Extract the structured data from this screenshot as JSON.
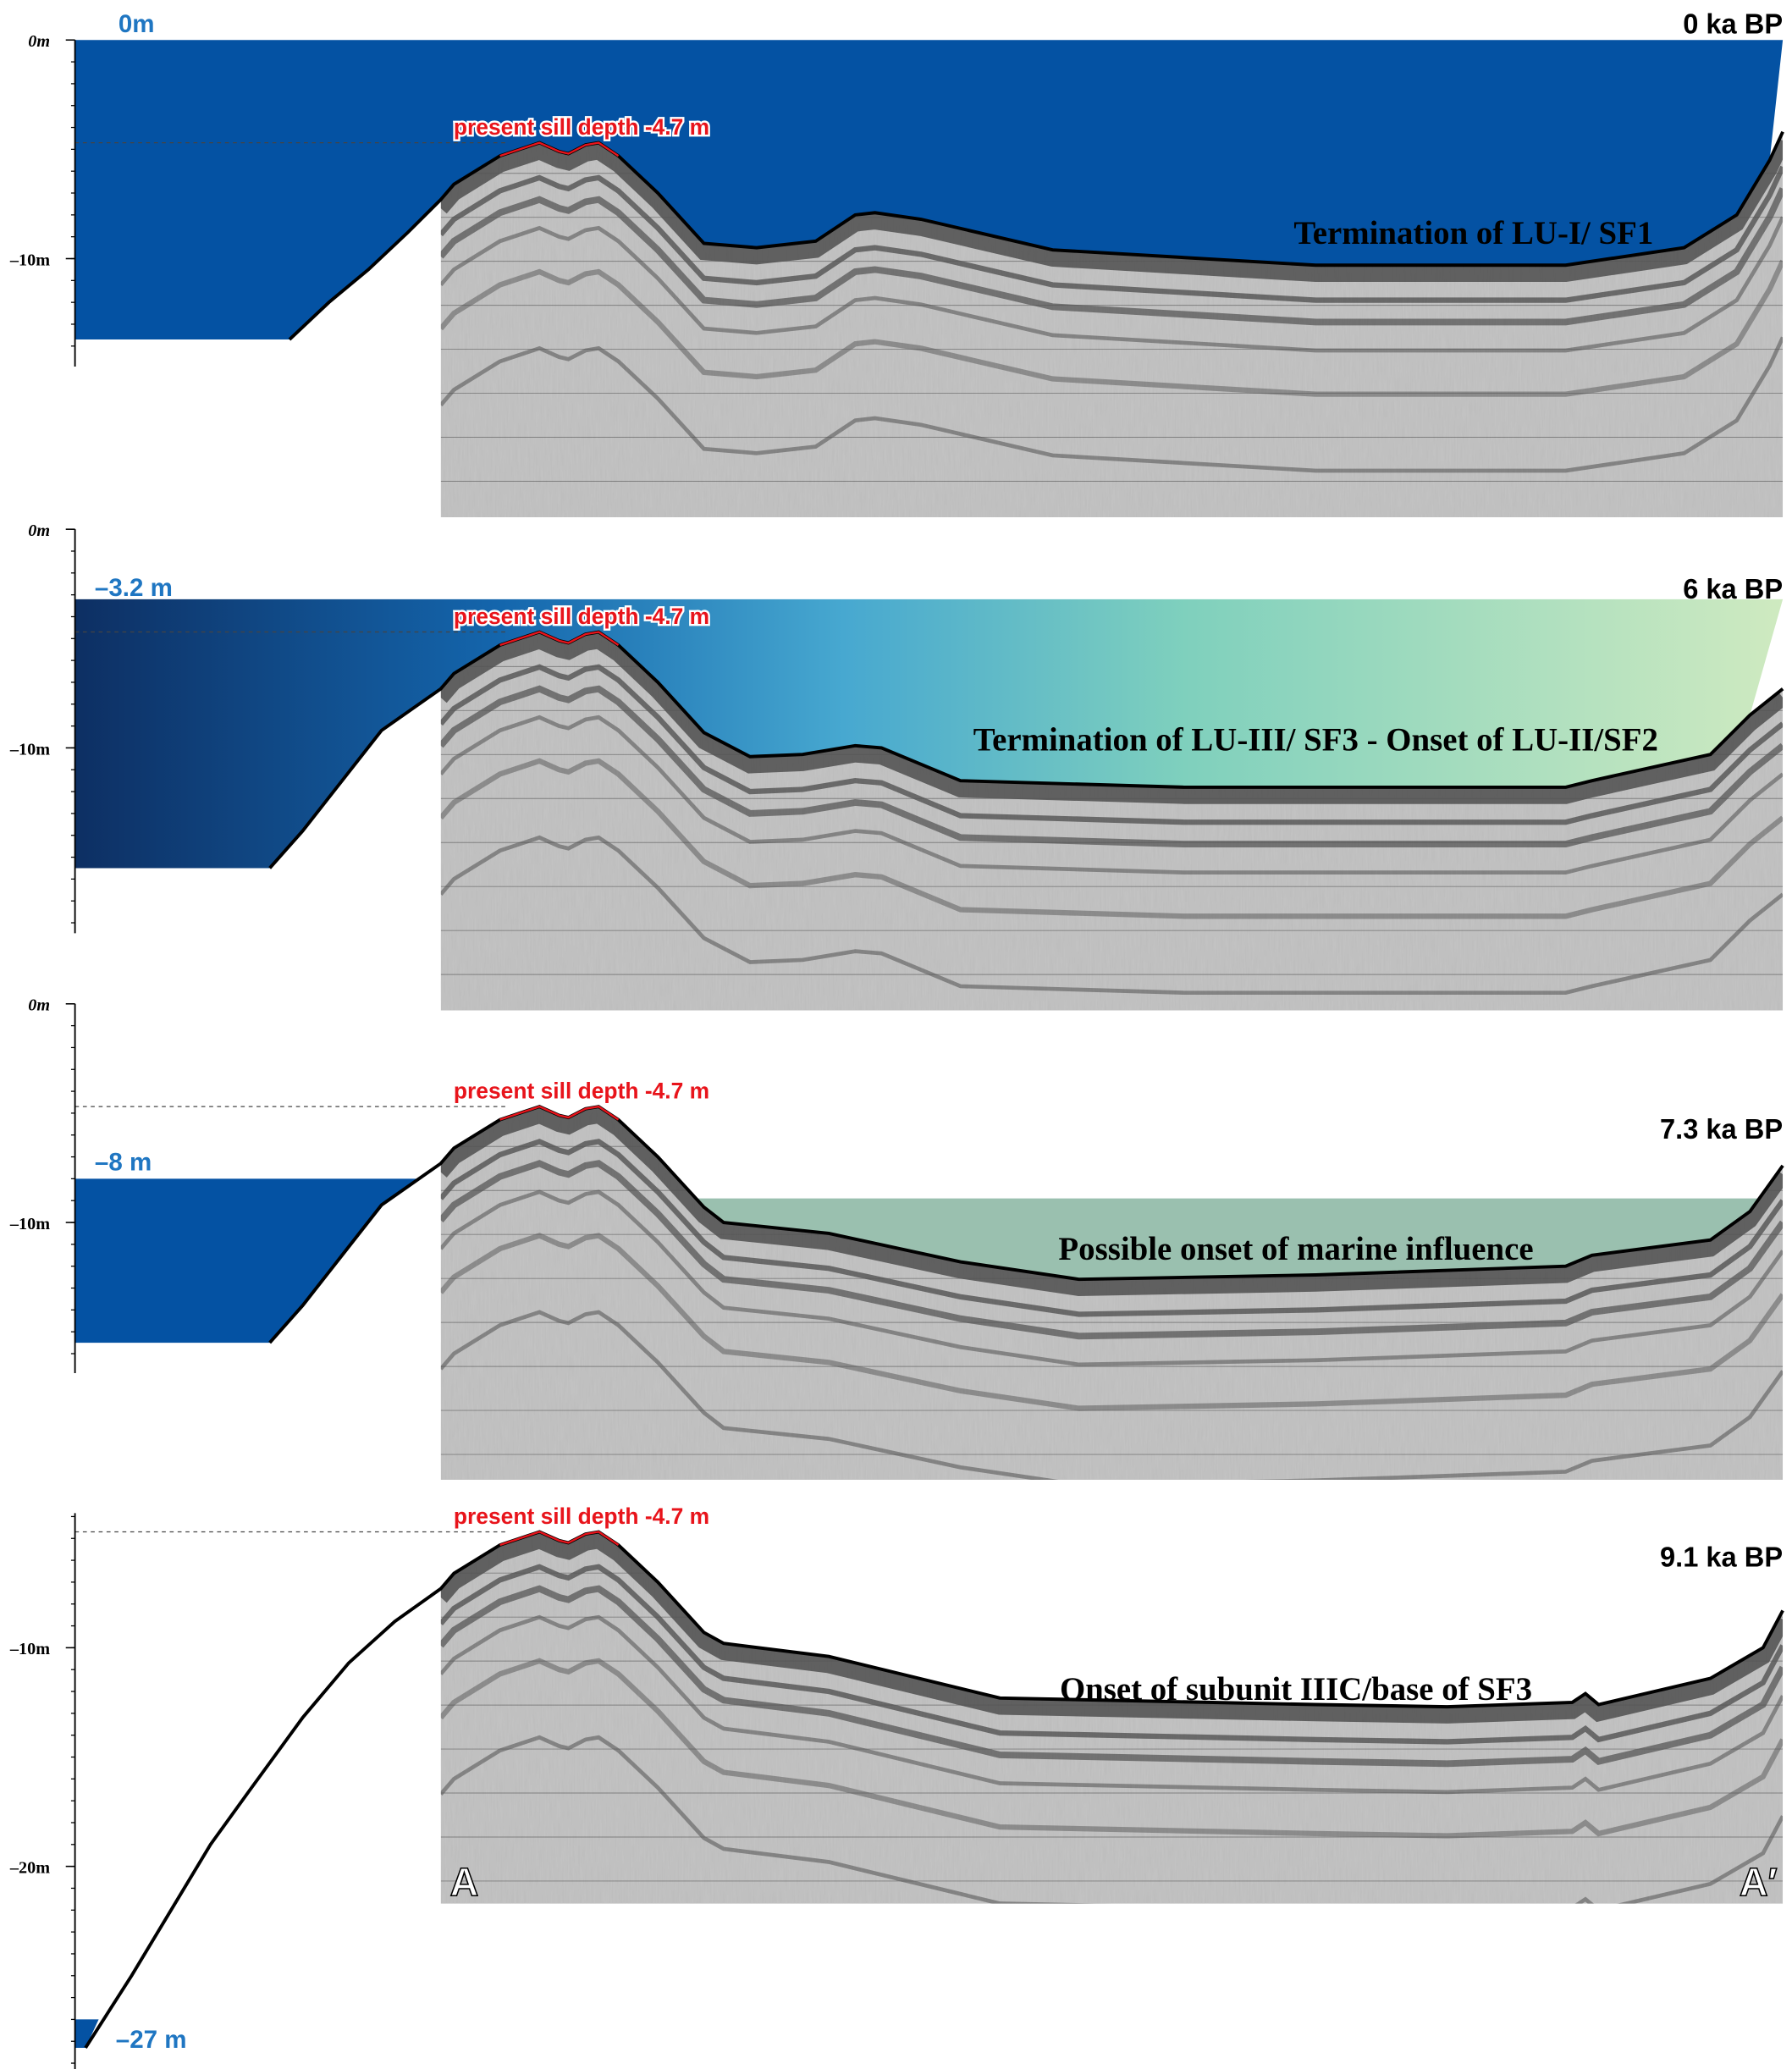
{
  "panels": [
    {
      "age": "0 ka BP",
      "sea_level": {
        "value": 0,
        "label": "0m"
      },
      "sill": {
        "value": -4.7,
        "label": "present sill depth -4.7 m"
      },
      "annotation": "Termination of LU-I/ SF1",
      "axis_ticks": [
        {
          "value": 0,
          "label": "0m"
        },
        {
          "value": -10,
          "label": "–10m"
        }
      ]
    },
    {
      "age": "6 ka BP",
      "sea_level": {
        "value": -3.2,
        "label": "–3.2 m"
      },
      "sill": {
        "value": -4.7,
        "label": "present sill depth -4.7 m"
      },
      "annotation": "Termination of LU-III/ SF3 - Onset of LU-II/SF2",
      "axis_ticks": [
        {
          "value": 0,
          "label": "0m"
        },
        {
          "value": -10,
          "label": "–10m"
        }
      ]
    },
    {
      "age": "7.3 ka BP",
      "sea_level": {
        "value": -8,
        "label": "–8 m"
      },
      "sill": {
        "value": -4.7,
        "label": "present sill depth -4.7 m"
      },
      "annotation": "Possible onset of marine influence",
      "axis_ticks": [
        {
          "value": 0,
          "label": "0m"
        },
        {
          "value": -10,
          "label": "–10m"
        }
      ]
    },
    {
      "age": "9.1 ka BP",
      "sea_level": {
        "value": -27,
        "label": "–27 m"
      },
      "sill": {
        "value": -4.7,
        "label": "present sill depth -4.7 m"
      },
      "annotation": "Onset of subunit IIIC/base of SF3",
      "axis_ticks": [
        {
          "value": -10,
          "label": "–10m"
        },
        {
          "value": -20,
          "label": "–20m"
        }
      ]
    }
  ],
  "profile_ends": [
    "A",
    "A′"
  ]
}
